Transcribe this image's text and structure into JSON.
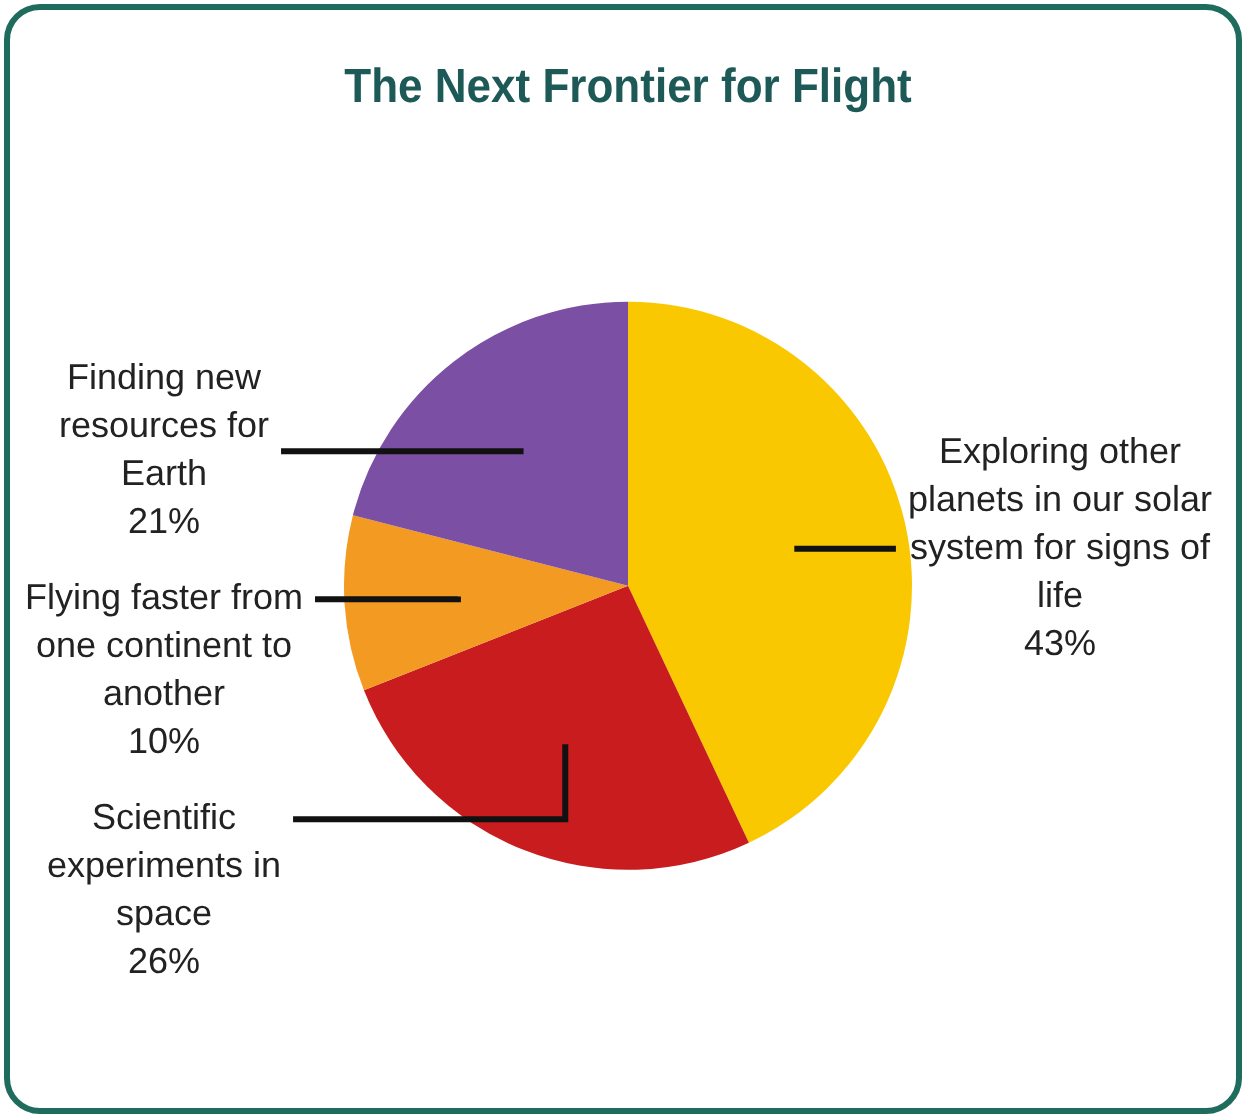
{
  "chart_data": {
    "type": "pie",
    "title": "The Next Frontier for Flight",
    "categories": [
      "Exploring other planets in our solar system for signs of life",
      "Scientific experiments in space",
      "Flying faster from one continent to another",
      "Finding new resources for Earth"
    ],
    "values": [
      43,
      26,
      10,
      21
    ],
    "value_labels": [
      "43%",
      "26%",
      "10%",
      "21%"
    ],
    "colors": [
      "#fac800",
      "#c81c1e",
      "#f39a22",
      "#7b4fa3"
    ],
    "legend": false
  }
}
